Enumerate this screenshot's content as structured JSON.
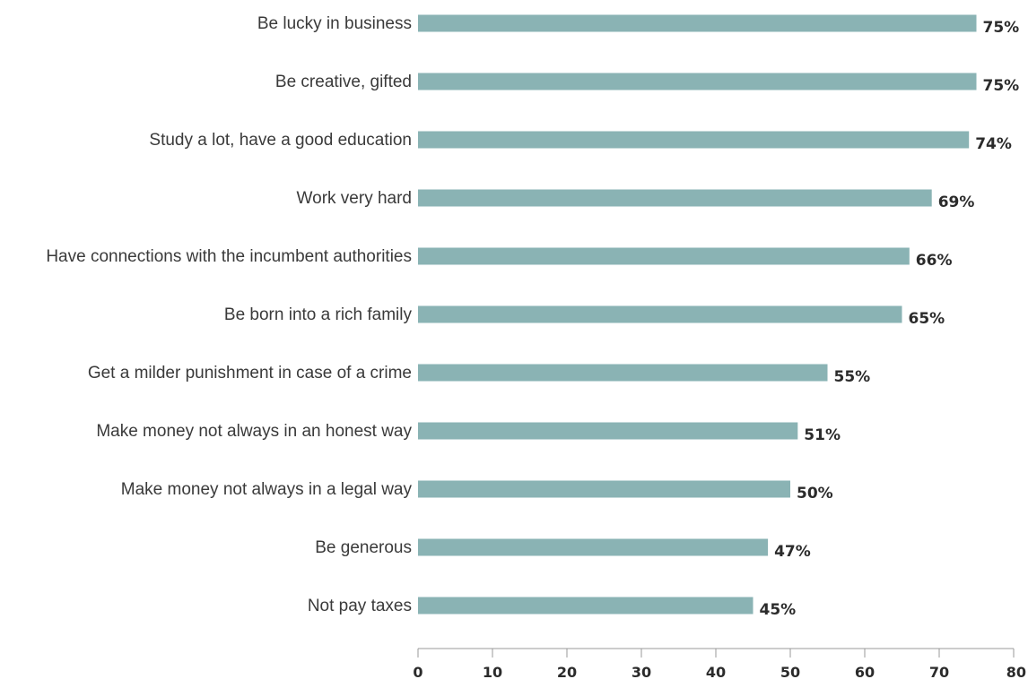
{
  "chart_data": {
    "type": "bar",
    "orientation": "horizontal",
    "categories": [
      "Be lucky in business",
      "Be creative, gifted",
      "Study a lot, have a good education",
      "Work very hard",
      "Have connections with the incumbent authorities",
      "Be born into a rich family",
      "Get a milder punishment in case of a crime",
      "Make money not always in an honest way",
      "Make money not always in a legal way",
      "Be generous",
      "Not pay taxes"
    ],
    "values": [
      75,
      75,
      74,
      69,
      66,
      65,
      55,
      51,
      50,
      47,
      45
    ],
    "value_labels": [
      "75%",
      "75%",
      "74%",
      "69%",
      "66%",
      "65%",
      "55%",
      "51%",
      "50%",
      "47%",
      "45%"
    ],
    "xlim": [
      0,
      80
    ],
    "xticks": [
      0,
      10,
      20,
      30,
      40,
      50,
      60,
      70,
      80
    ],
    "grid": false,
    "bar_color": "#8ab3b4",
    "title": "",
    "xlabel": "",
    "ylabel": ""
  }
}
